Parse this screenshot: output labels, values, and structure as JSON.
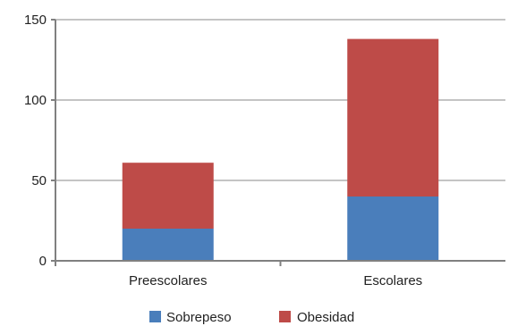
{
  "chart_data": {
    "type": "bar",
    "stacked": true,
    "categories": [
      "Preescolares",
      "Escolares"
    ],
    "series": [
      {
        "name": "Sobrepeso",
        "values": [
          20,
          40
        ],
        "color": "#4a7ebb"
      },
      {
        "name": "Obesidad",
        "values": [
          41,
          98
        ],
        "color": "#be4b48"
      }
    ],
    "title": "",
    "xlabel": "",
    "ylabel": "",
    "ylim": [
      0,
      150
    ],
    "yticks": [
      0,
      50,
      100,
      150
    ],
    "grid": true,
    "legend": "bottom"
  }
}
